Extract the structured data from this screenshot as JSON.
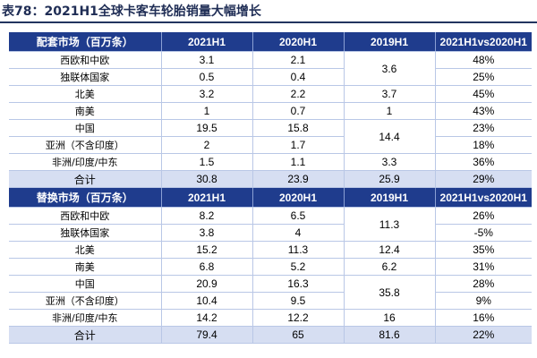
{
  "title": "表78：2021H1全球卡客车轮胎销量大幅增长",
  "columns": [
    "2021H1",
    "2020H1",
    "2019H1",
    "2021H1vs2020H1"
  ],
  "sections": [
    {
      "header": "配套市场（百万条）",
      "rows": [
        {
          "region": "西欧和中欧",
          "h1_2021": "3.1",
          "h1_2020": "2.1",
          "h1_2019": "3.6",
          "yoy": "48%"
        },
        {
          "region": "独联体国家",
          "h1_2021": "0.5",
          "h1_2020": "0.4",
          "h1_2019": "",
          "yoy": "25%"
        },
        {
          "region": "北美",
          "h1_2021": "3.2",
          "h1_2020": "2.2",
          "h1_2019": "3.7",
          "yoy": "45%"
        },
        {
          "region": "南美",
          "h1_2021": "1",
          "h1_2020": "0.7",
          "h1_2019": "1",
          "yoy": "43%"
        },
        {
          "region": "中国",
          "h1_2021": "19.5",
          "h1_2020": "15.8",
          "h1_2019": "14.4",
          "yoy": "23%"
        },
        {
          "region": "亚洲（不含印度）",
          "h1_2021": "2",
          "h1_2020": "1.7",
          "h1_2019": "",
          "yoy": "18%"
        },
        {
          "region": "非洲/印度/中东",
          "h1_2021": "1.5",
          "h1_2020": "1.1",
          "h1_2019": "3.3",
          "yoy": "36%"
        }
      ],
      "total": {
        "label": "合计",
        "h1_2021": "30.8",
        "h1_2020": "23.9",
        "h1_2019": "25.9",
        "yoy": "29%"
      }
    },
    {
      "header": "替换市场（百万条）",
      "rows": [
        {
          "region": "西欧和中欧",
          "h1_2021": "8.2",
          "h1_2020": "6.5",
          "h1_2019": "11.3",
          "yoy": "26%"
        },
        {
          "region": "独联体国家",
          "h1_2021": "3.8",
          "h1_2020": "4",
          "h1_2019": "",
          "yoy": "-5%"
        },
        {
          "region": "北美",
          "h1_2021": "15.2",
          "h1_2020": "11.3",
          "h1_2019": "12.4",
          "yoy": "35%"
        },
        {
          "region": "南美",
          "h1_2021": "6.8",
          "h1_2020": "5.2",
          "h1_2019": "6.2",
          "yoy": "31%"
        },
        {
          "region": "中国",
          "h1_2021": "20.9",
          "h1_2020": "16.3",
          "h1_2019": "35.8",
          "yoy": "28%"
        },
        {
          "region": "亚洲（不含印度）",
          "h1_2021": "10.4",
          "h1_2020": "9.5",
          "h1_2019": "",
          "yoy": "9%"
        },
        {
          "region": "非洲/印度/中东",
          "h1_2021": "14.2",
          "h1_2020": "12.2",
          "h1_2019": "16",
          "yoy": "16%"
        }
      ],
      "total": {
        "label": "合计",
        "h1_2021": "79.4",
        "h1_2020": "65",
        "h1_2019": "81.6",
        "yoy": "22%"
      }
    }
  ]
}
